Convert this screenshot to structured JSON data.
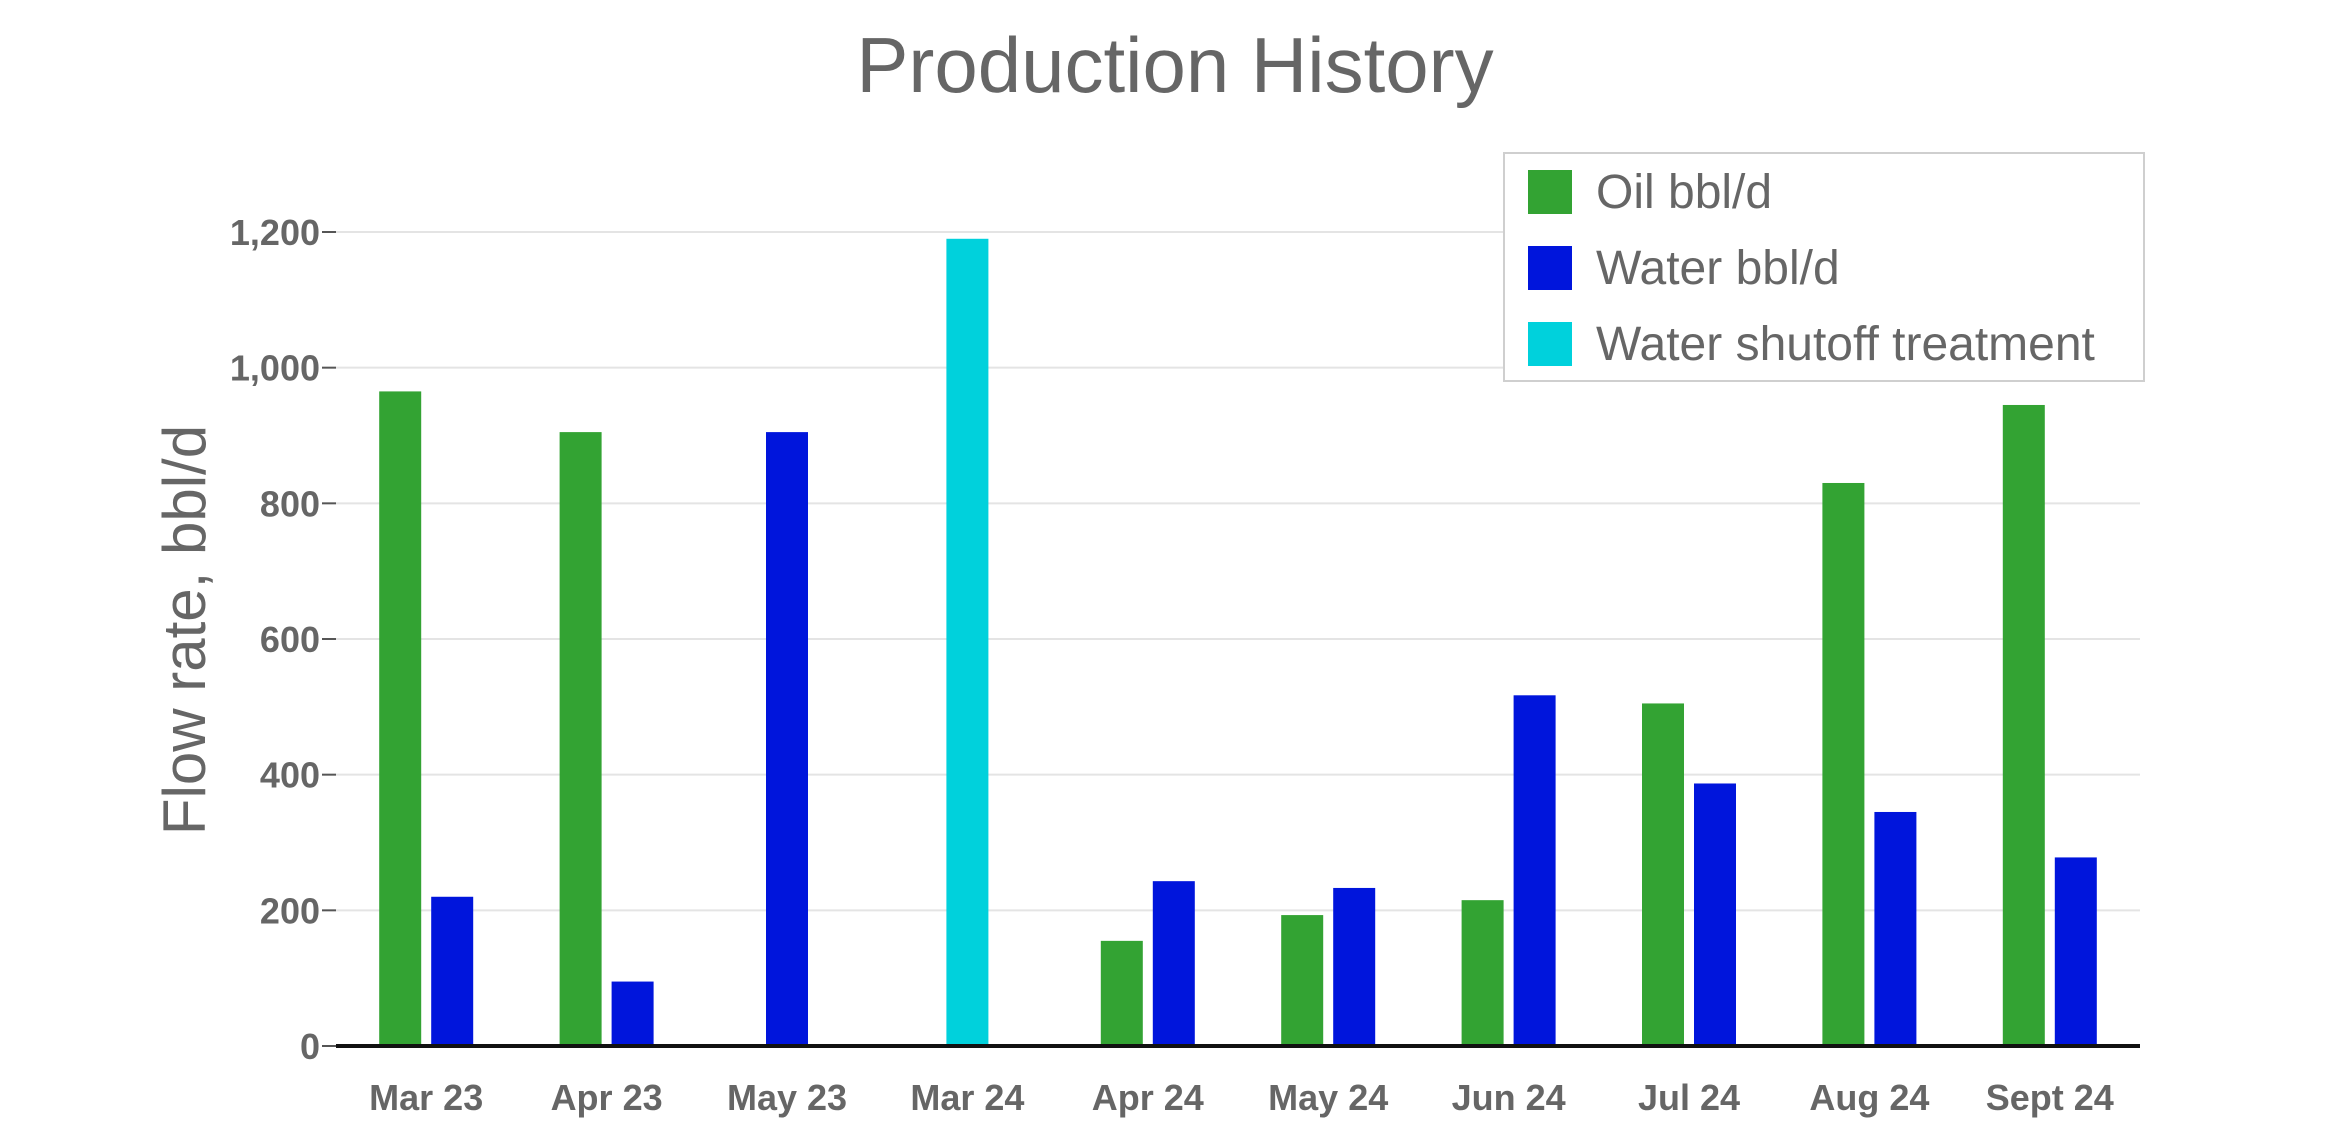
{
  "chart_data": {
    "type": "bar",
    "title": "Production History",
    "xlabel": "",
    "ylabel": "Flow rate, bbl/d",
    "categories": [
      "Mar 23",
      "Apr 23",
      "May 23",
      "Mar 24",
      "Apr 24",
      "May 24",
      "Jun 24",
      "Jul 24",
      "Aug 24",
      "Sept 24"
    ],
    "series": [
      {
        "name": "Oil bbl/d",
        "color": "#33a333",
        "values": [
          965,
          905,
          null,
          null,
          155,
          193,
          215,
          505,
          830,
          945
        ]
      },
      {
        "name": "Water bbl/d",
        "color": "#0015dc",
        "values": [
          220,
          95,
          905,
          null,
          243,
          233,
          null,
          387,
          345,
          278
        ]
      },
      {
        "name": "Water shutoff treatment",
        "color": "#00d1dc",
        "values": [
          null,
          null,
          null,
          1190,
          null,
          null,
          null,
          null,
          null,
          null
        ]
      }
    ],
    "extra_points": [
      {
        "category": "Jun 24",
        "series": "Water bbl/d",
        "value": 517
      }
    ],
    "yticks": [
      "0",
      "200",
      "400",
      "600",
      "800",
      "1,000",
      "1,200"
    ],
    "ytick_values": [
      0,
      200,
      400,
      600,
      800,
      1000,
      1200
    ],
    "ylim": [
      0,
      1200
    ],
    "grid": true,
    "legend_position": "top-right"
  }
}
